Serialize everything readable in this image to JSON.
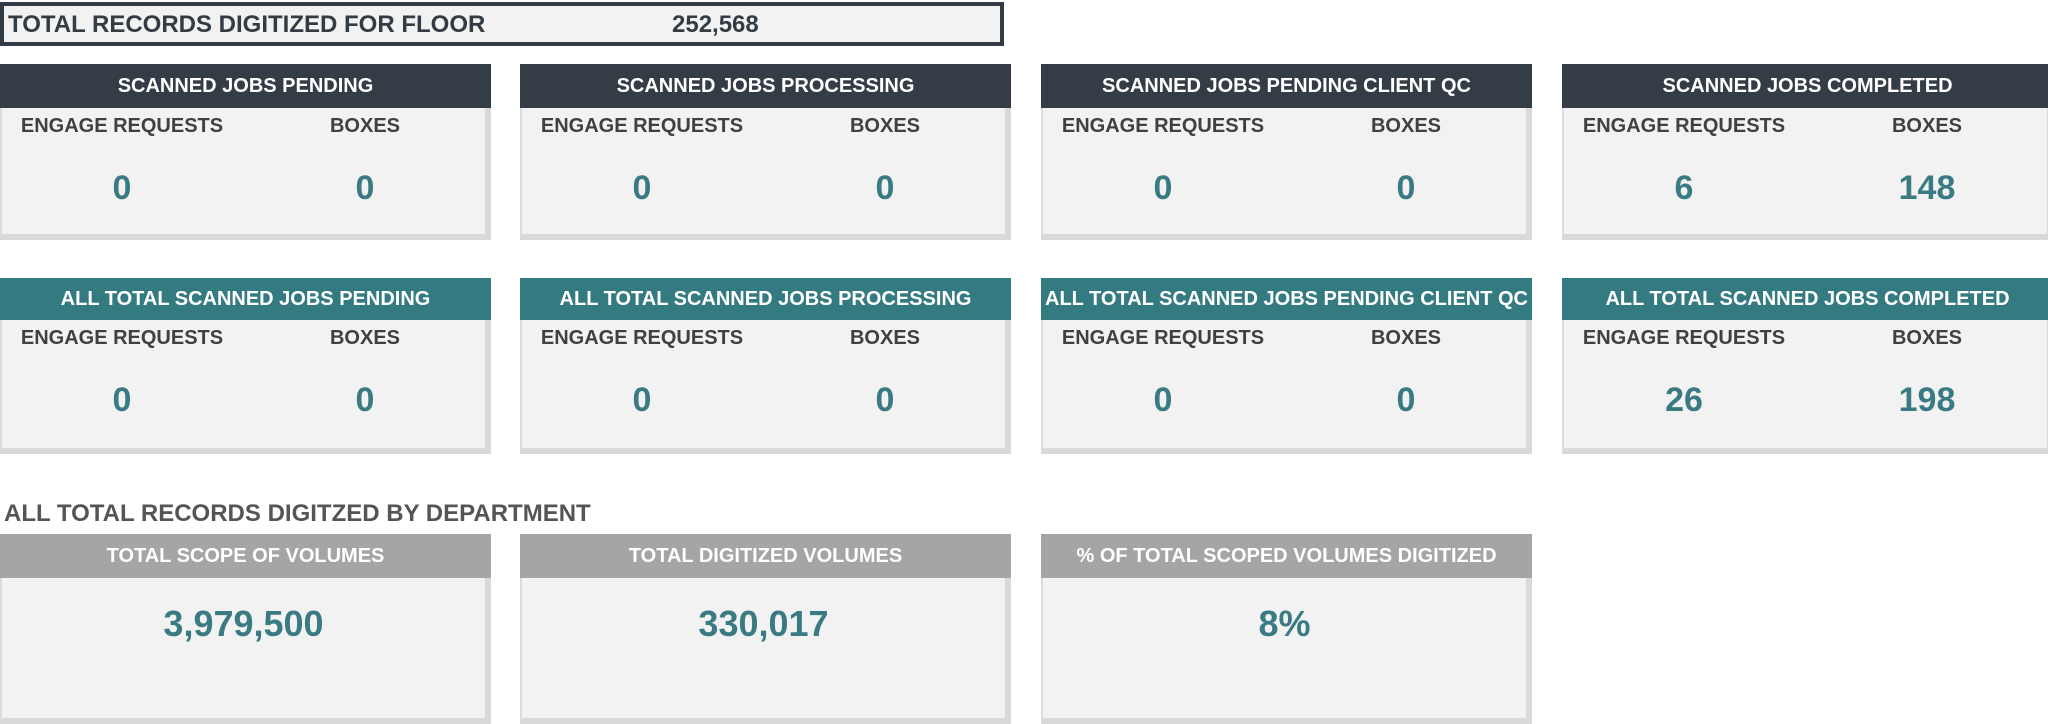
{
  "floor_total": {
    "label": "TOTAL RECORDS DIGITIZED FOR FLOOR",
    "value": "252,568"
  },
  "sub_labels": {
    "requests": "ENGAGE REQUESTS",
    "boxes": "BOXES"
  },
  "scanned_jobs": [
    {
      "title": "SCANNED JOBS PENDING",
      "requests": "0",
      "boxes": "0"
    },
    {
      "title": "SCANNED JOBS PROCESSING",
      "requests": "0",
      "boxes": "0"
    },
    {
      "title": "SCANNED JOBS PENDING CLIENT QC",
      "requests": "0",
      "boxes": "0"
    },
    {
      "title": "SCANNED JOBS COMPLETED",
      "requests": "6",
      "boxes": "148"
    }
  ],
  "all_total_jobs": [
    {
      "title": "ALL TOTAL SCANNED JOBS PENDING",
      "requests": "0",
      "boxes": "0"
    },
    {
      "title": "ALL TOTAL SCANNED JOBS PROCESSING",
      "requests": "0",
      "boxes": "0"
    },
    {
      "title": "ALL TOTAL SCANNED JOBS PENDING CLIENT QC",
      "requests": "0",
      "boxes": "0"
    },
    {
      "title": "ALL TOTAL SCANNED JOBS COMPLETED",
      "requests": "26",
      "boxes": "198"
    }
  ],
  "department": {
    "title": "ALL TOTAL RECORDS DIGITZED BY DEPARTMENT",
    "cards": [
      {
        "title": "TOTAL SCOPE OF VOLUMES",
        "value": "3,979,500"
      },
      {
        "title": "TOTAL DIGITIZED VOLUMES",
        "value": "330,017"
      },
      {
        "title": "% OF TOTAL SCOPED VOLUMES DIGITIZED",
        "value": "8%"
      }
    ]
  },
  "colors": {
    "dark_header": "#343c45",
    "teal_header": "#337b80",
    "gray_header": "#a5a5a5",
    "value_text": "#3a7b83"
  }
}
